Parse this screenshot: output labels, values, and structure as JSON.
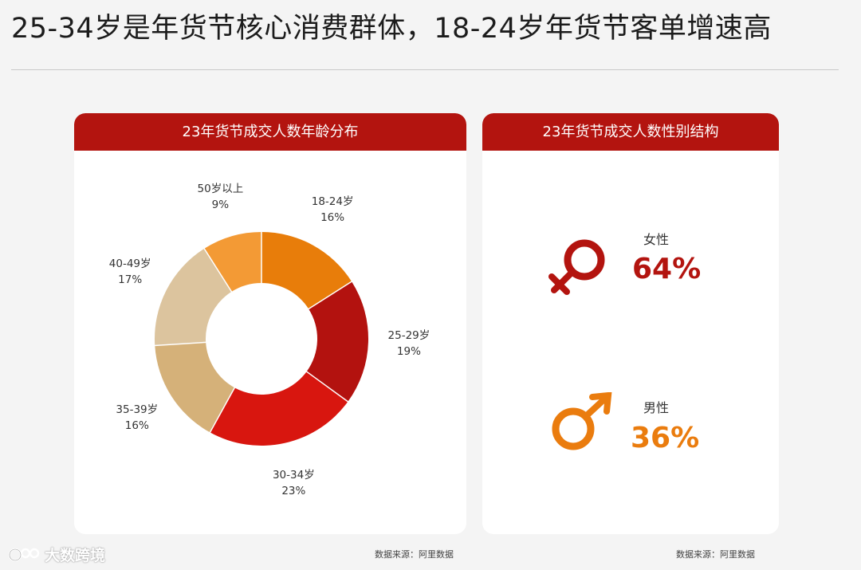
{
  "page": {
    "title": "25-34岁是年货节核心消费群体，18-24岁年货节客单增速高"
  },
  "left_panel": {
    "header": "23年货节成交人数年龄分布",
    "source": "数据来源：阿里数据"
  },
  "right_panel": {
    "header": "23年货节成交人数性别结构",
    "source": "数据来源：阿里数据",
    "female": {
      "label": "女性",
      "value": "64%",
      "color": "#b3140f",
      "icon": "female-symbol-icon"
    },
    "male": {
      "label": "男性",
      "value": "36%",
      "color": "#ea7c0e",
      "icon": "male-symbol-icon"
    }
  },
  "watermark": {
    "text": "大数跨境"
  },
  "chart_data": [
    {
      "type": "pie",
      "variant": "donut",
      "categories": [
        "18-24岁",
        "25-29岁",
        "30-34岁",
        "35-39岁",
        "40-49岁",
        "50岁以上"
      ],
      "values": [
        16,
        19,
        23,
        16,
        17,
        9
      ],
      "value_labels": [
        "16%",
        "19%",
        "23%",
        "16%",
        "17%",
        "9%"
      ],
      "colors": [
        "#e87d0a",
        "#b3120f",
        "#d8160f",
        "#d5b179",
        "#dcc49e",
        "#f39a35"
      ],
      "title": "23年货节成交人数年龄分布"
    },
    {
      "type": "table",
      "categories": [
        "女性",
        "男性"
      ],
      "values": [
        64,
        36
      ],
      "title": "23年货节成交人数性别结构"
    }
  ]
}
